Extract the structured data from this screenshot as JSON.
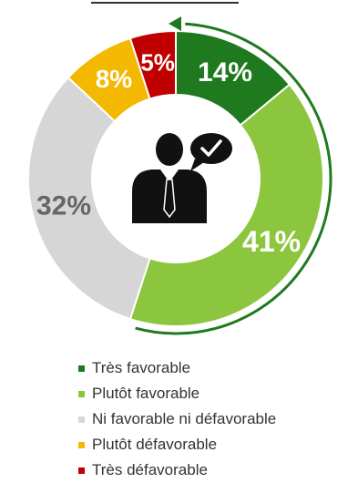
{
  "chart_data": {
    "type": "pie",
    "categories": [
      "Très favorable",
      "Plutôt favorable",
      "Ni favorable ni défavorable",
      "Plutôt défavorable",
      "Très défavorable"
    ],
    "values": [
      14,
      41,
      32,
      8,
      5
    ],
    "labels": [
      "14%",
      "41%",
      "32%",
      "8%",
      "5%"
    ],
    "colors": [
      "#1f7a1f",
      "#8cc63f",
      "#d6d6d6",
      "#f5b800",
      "#c00000"
    ],
    "label_colors": [
      "#ffffff",
      "#ffffff",
      "#666666",
      "#ffffff",
      "#ffffff"
    ],
    "legend_position": "bottom",
    "center_icon": "person-speech-bubble-icon",
    "annotation_icon": "curved-arrow-icon"
  }
}
